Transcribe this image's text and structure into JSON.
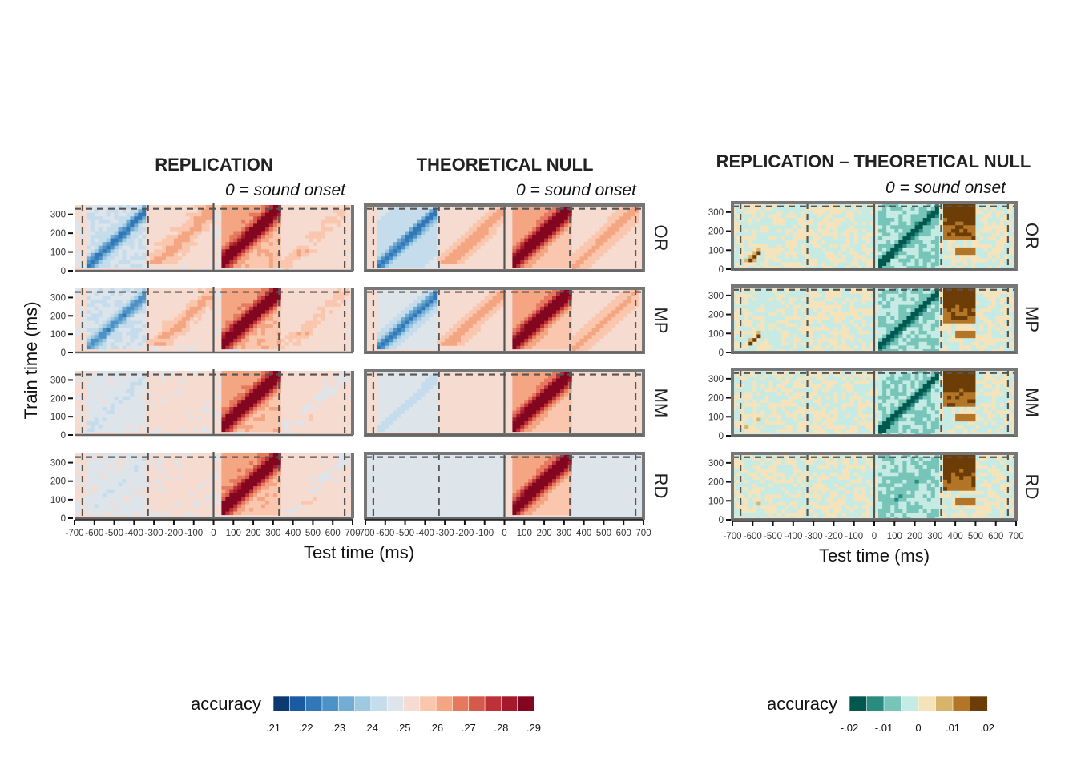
{
  "chart_data": [
    {
      "type": "heatmap",
      "title": "REPLICATION",
      "annotation": "0 = sound onset",
      "xlabel": "Test time (ms)",
      "ylabel": "Train time (ms)",
      "xlim": [
        -700,
        700
      ],
      "ylim": [
        0,
        350
      ],
      "x_ticks": [
        "-700",
        "-600",
        "-500",
        "-400",
        "-300",
        "-200",
        "-100",
        "0",
        "100",
        "200",
        "300",
        "400",
        "500",
        "600",
        "700"
      ],
      "y_ticks": [
        "0",
        "100",
        "200",
        "300"
      ],
      "rows": [
        "OR",
        "MP",
        "MM",
        "RD"
      ],
      "sound_onsets_ms": [
        -660,
        -330,
        0,
        330,
        660
      ],
      "legend": "accuracy-diverging-red-blue"
    },
    {
      "type": "heatmap",
      "title": "THEORETICAL NULL",
      "annotation": "0 = sound onset",
      "xlabel": "Test time (ms)",
      "xlim": [
        -700,
        700
      ],
      "ylim": [
        0,
        350
      ],
      "x_ticks": [
        "-700",
        "-600",
        "-500",
        "-400",
        "-300",
        "-200",
        "-100",
        "0",
        "100",
        "200",
        "300",
        "400",
        "500",
        "600",
        "700"
      ],
      "y_ticks": [
        "0",
        "100",
        "200",
        "300"
      ],
      "rows": [
        "OR",
        "MP",
        "MM",
        "RD"
      ],
      "sound_onsets_ms": [
        -660,
        -330,
        0,
        330,
        660
      ],
      "legend": "accuracy-diverging-red-blue"
    },
    {
      "type": "heatmap",
      "title": "REPLICATION – THEORETICAL NULL",
      "annotation": "0 = sound onset",
      "xlabel": "Test time (ms)",
      "xlim": [
        -700,
        700
      ],
      "ylim": [
        0,
        350
      ],
      "x_ticks": [
        "-700",
        "-600",
        "-500",
        "-400",
        "-300",
        "-200",
        "-100",
        "0",
        "100",
        "200",
        "300",
        "400",
        "500",
        "600",
        "700"
      ],
      "y_ticks": [
        "0",
        "100",
        "200",
        "300"
      ],
      "rows": [
        "OR",
        "MP",
        "MM",
        "RD"
      ],
      "sound_onsets_ms": [
        -660,
        -330,
        0,
        330,
        660
      ],
      "legend": "accuracy-diverging-brown-teal"
    }
  ],
  "legends": [
    {
      "title": "accuracy",
      "tick_labels": [
        ".21",
        ".22",
        ".23",
        ".24",
        ".25",
        ".26",
        ".27",
        ".28",
        ".29"
      ],
      "range": [
        0.21,
        0.29
      ],
      "colors": [
        "#0d3a6e",
        "#1a5aa0",
        "#3277b8",
        "#4d92c6",
        "#74add3",
        "#9ecae1",
        "#c4dcec",
        "#dde4ea",
        "#f5dbd0",
        "#fac6ad",
        "#f4a582",
        "#e5785f",
        "#d45a4b",
        "#bd3238",
        "#a41a2c",
        "#82061f"
      ]
    },
    {
      "title": "accuracy",
      "tick_labels": [
        "-.02",
        "-.01",
        "0",
        ".01",
        ".02"
      ],
      "range": [
        -0.02,
        0.02
      ],
      "colors": [
        "#01584f",
        "#2a8b80",
        "#76c5b8",
        "#c6ebe5",
        "#f4e3bb",
        "#d8b36a",
        "#b37527",
        "#6d3d07"
      ]
    }
  ],
  "axis_labels": {
    "y": "Train time (ms)",
    "x_left": "Test time (ms)",
    "x_right": "Test time (ms)"
  }
}
